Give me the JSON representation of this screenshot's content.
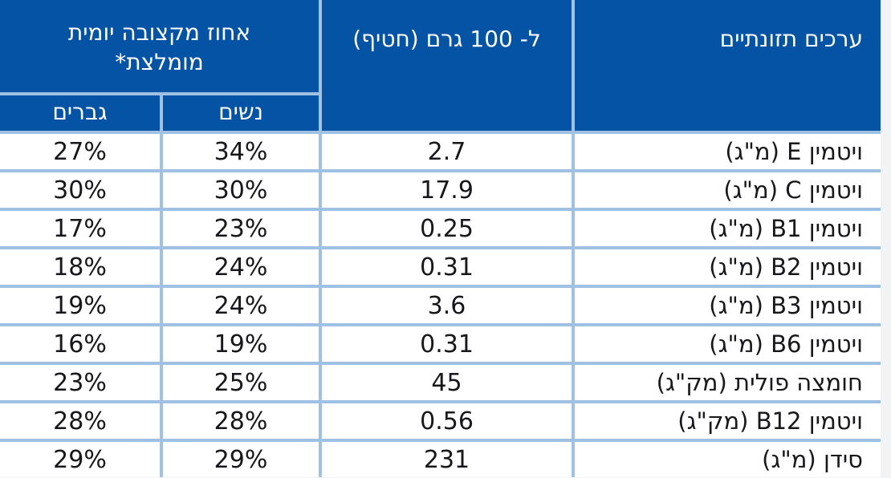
{
  "table": {
    "header": {
      "nutrients_label": "ערכים תזונתיים",
      "per100g_label": "ל- 100 גרם (חטיף)",
      "rda_group_label": "אחוז מקצובה יומית מומלצת*",
      "women_label": "נשים",
      "men_label": "גברים"
    },
    "rows": [
      {
        "name": "ויטמין E (מ\"ג)",
        "per100g": "2.7",
        "women": "34%",
        "men": "27%"
      },
      {
        "name": "ויטמין C (מ\"ג)",
        "per100g": "17.9",
        "women": "30%",
        "men": "30%"
      },
      {
        "name": "ויטמין B1 (מ\"ג)",
        "per100g": "0.25",
        "women": "23%",
        "men": "17%"
      },
      {
        "name": "ויטמין B2 (מ\"ג)",
        "per100g": "0.31",
        "women": "24%",
        "men": "18%"
      },
      {
        "name": "ויטמין B3 (מ\"ג)",
        "per100g": "3.6",
        "women": "24%",
        "men": "19%"
      },
      {
        "name": "ויטמין B6 (מ\"ג)",
        "per100g": "0.31",
        "women": "19%",
        "men": "16%"
      },
      {
        "name": "חומצה פולית (מק\"ג)",
        "per100g": "45",
        "women": "25%",
        "men": "23%"
      },
      {
        "name": "ויטמין B12 (מק\"ג)",
        "per100g": "0.56",
        "women": "28%",
        "men": "28%"
      },
      {
        "name": "סידן (מ\"ג)",
        "per100g": "231",
        "women": "29%",
        "men": "29%"
      }
    ],
    "colors": {
      "header_bg": "#0553a5",
      "header_text": "#ffffff",
      "grid_line": "#9fc2e4",
      "cell_bg": "#ffffff",
      "cell_text": "#17171c",
      "page_bg": "#f2f3f4"
    }
  },
  "chart_data": {
    "type": "table",
    "title": "",
    "columns": [
      "ערכים תזונתיים",
      "ל- 100 גרם (חטיף)",
      "אחוז מקצובה יומית מומלצת* - נשים",
      "אחוז מקצובה יומית מומלצת* - גברים"
    ],
    "rows": [
      [
        "ויטמין E (מ\"ג)",
        "2.7",
        "34%",
        "27%"
      ],
      [
        "ויטמין C (מ\"ג)",
        "17.9",
        "30%",
        "30%"
      ],
      [
        "ויטמין B1 (מ\"ג)",
        "0.25",
        "23%",
        "17%"
      ],
      [
        "ויטמין B2 (מ\"ג)",
        "0.31",
        "24%",
        "18%"
      ],
      [
        "ויטמין B3 (מ\"ג)",
        "3.6",
        "24%",
        "19%"
      ],
      [
        "ויטמין B6 (מ\"ג)",
        "0.31",
        "19%",
        "16%"
      ],
      [
        "חומצה פולית (מק\"ג)",
        "45",
        "25%",
        "23%"
      ],
      [
        "ויטמין B12 (מק\"ג)",
        "0.56",
        "28%",
        "28%"
      ],
      [
        "סידן (מ\"ג)",
        "231",
        "29%",
        "29%"
      ]
    ]
  }
}
